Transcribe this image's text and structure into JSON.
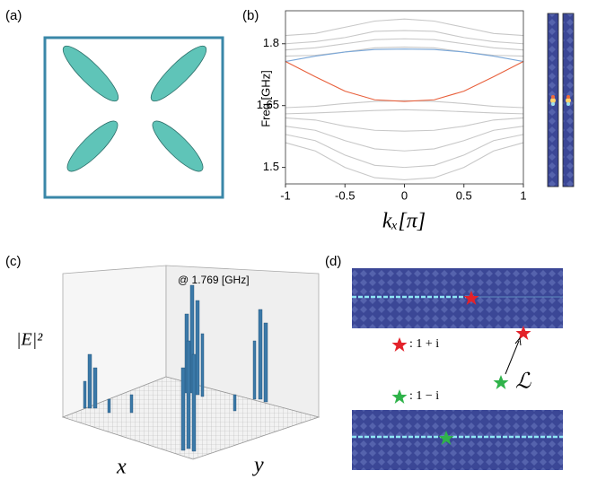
{
  "panel_labels": [
    "(a)",
    "(b)",
    "(c)",
    "(d)"
  ],
  "chart_data": {
    "type": "line",
    "x": [
      -1,
      -0.75,
      -0.5,
      -0.25,
      0,
      0.25,
      0.5,
      0.75,
      1
    ],
    "xlim": [
      -1,
      1
    ],
    "xticks": [
      -1,
      -0.5,
      0,
      0.5,
      1
    ],
    "ylim": [
      1.46,
      1.88
    ],
    "yticks": [
      1.5,
      1.65,
      1.8
    ],
    "xlabel": "kₓ[π]",
    "ylabel": "Freq [GHz]",
    "grid": false,
    "series": [
      {
        "color": "#c8c8c8",
        "values": [
          1.77,
          1.772,
          1.78,
          1.79,
          1.792,
          1.79,
          1.78,
          1.772,
          1.77
        ]
      },
      {
        "color": "#c8c8c8",
        "values": [
          1.785,
          1.79,
          1.8,
          1.81,
          1.812,
          1.81,
          1.8,
          1.79,
          1.785
        ]
      },
      {
        "color": "#c8c8c8",
        "values": [
          1.8,
          1.805,
          1.815,
          1.83,
          1.832,
          1.83,
          1.815,
          1.805,
          1.8
        ]
      },
      {
        "color": "#c8c8c8",
        "values": [
          1.82,
          1.825,
          1.84,
          1.855,
          1.86,
          1.855,
          1.84,
          1.825,
          1.82
        ]
      },
      {
        "color": "#c8c8c8",
        "values": [
          1.645,
          1.648,
          1.655,
          1.66,
          1.662,
          1.66,
          1.655,
          1.648,
          1.645
        ]
      },
      {
        "color": "#c8c8c8",
        "values": [
          1.63,
          1.632,
          1.635,
          1.638,
          1.64,
          1.638,
          1.635,
          1.632,
          1.63
        ]
      },
      {
        "color": "#c8c8c8",
        "values": [
          1.62,
          1.615,
          1.6,
          1.59,
          1.588,
          1.59,
          1.6,
          1.615,
          1.62
        ]
      },
      {
        "color": "#c8c8c8",
        "values": [
          1.6,
          1.59,
          1.565,
          1.545,
          1.54,
          1.545,
          1.565,
          1.59,
          1.6
        ]
      },
      {
        "color": "#c8c8c8",
        "values": [
          1.58,
          1.565,
          1.53,
          1.505,
          1.5,
          1.505,
          1.53,
          1.565,
          1.58
        ]
      },
      {
        "color": "#c8c8c8",
        "values": [
          1.56,
          1.54,
          1.5,
          1.475,
          1.47,
          1.475,
          1.5,
          1.54,
          1.56
        ]
      },
      {
        "color": "#7aa7d8",
        "values": [
          1.757,
          1.77,
          1.78,
          1.786,
          1.787,
          1.786,
          1.78,
          1.77,
          1.757
        ]
      },
      {
        "color": "#e8603c",
        "values": [
          1.757,
          1.72,
          1.685,
          1.664,
          1.66,
          1.664,
          1.685,
          1.72,
          1.757
        ]
      }
    ]
  },
  "panel_c": {
    "annotation": "@ 1.769 [GHz]",
    "zlabel": "|E|²",
    "xlabel": "x",
    "ylabel": "y"
  },
  "panel_d": {
    "legend": [
      ": 1 + i",
      ": 1 − i"
    ],
    "operator": "ℒ"
  }
}
